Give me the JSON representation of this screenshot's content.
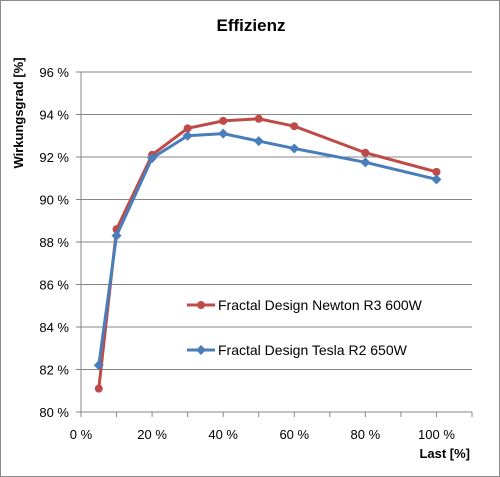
{
  "chart_data": {
    "type": "line",
    "title": "Effizienz",
    "xlabel": "Last [%]",
    "ylabel": "Wirkungsgrad [%]",
    "xlim": [
      0,
      110
    ],
    "ylim": [
      80,
      96
    ],
    "x_ticks": [
      0,
      20,
      40,
      60,
      80,
      100
    ],
    "y_ticks": [
      80,
      82,
      84,
      86,
      88,
      90,
      92,
      94,
      96
    ],
    "x_tick_labels": [
      "0 %",
      "20 %",
      "40 %",
      "60 %",
      "80 %",
      "100 %"
    ],
    "y_tick_labels": [
      "80 %",
      "82 %",
      "84 %",
      "86 %",
      "88 %",
      "90 %",
      "92 %",
      "94 %",
      "96 %"
    ],
    "grid": "horizontal",
    "legend_position": "lower-right",
    "series": [
      {
        "name": "Fractal Design Newton R3 600W",
        "color": "#be4b48",
        "marker": "circle",
        "x": [
          5,
          10,
          20,
          30,
          40,
          50,
          60,
          80,
          100
        ],
        "y": [
          81.1,
          88.6,
          92.1,
          93.35,
          93.7,
          93.8,
          93.45,
          92.2,
          91.3
        ]
      },
      {
        "name": "Fractal Design Tesla R2 650W",
        "color": "#4a7ebb",
        "marker": "diamond",
        "x": [
          5,
          10,
          20,
          30,
          40,
          50,
          60,
          80,
          100
        ],
        "y": [
          82.2,
          88.3,
          91.95,
          93.0,
          93.1,
          92.75,
          92.4,
          91.75,
          90.95
        ]
      }
    ]
  }
}
